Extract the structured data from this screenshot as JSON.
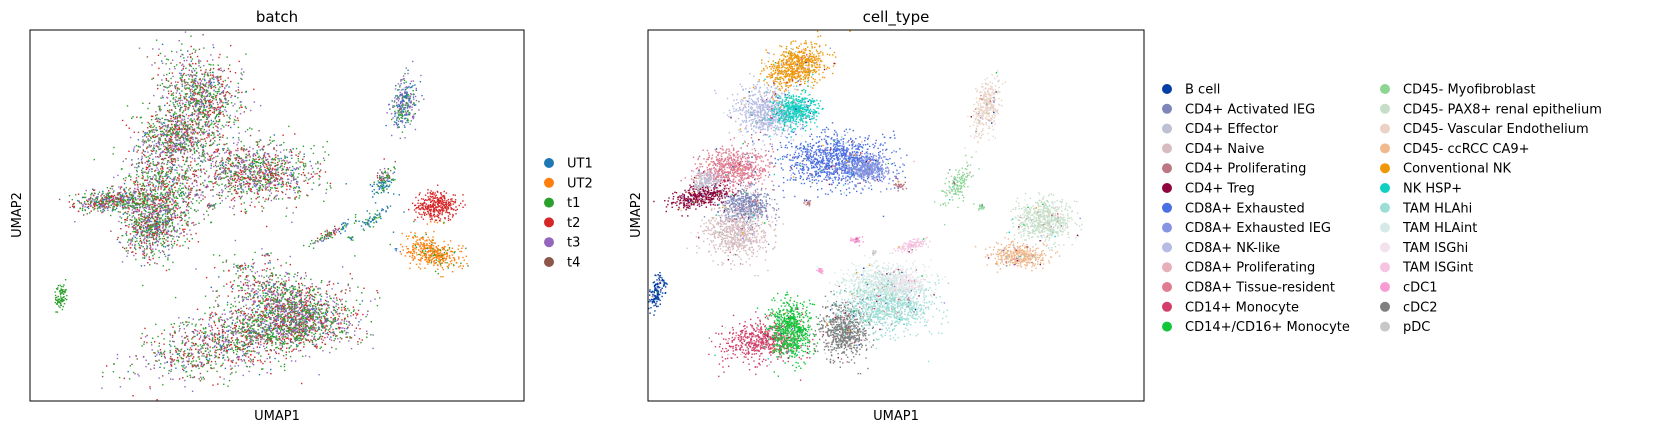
{
  "chart_data": [
    {
      "type": "scatter",
      "title": "batch",
      "xlabel": "UMAP1",
      "ylabel": "UMAP2",
      "legend_position": "right",
      "ticks": "none",
      "series": [
        {
          "name": "UT1",
          "color": "#1f77b4"
        },
        {
          "name": "UT2",
          "color": "#ff7f0e"
        },
        {
          "name": "t1",
          "color": "#2ca02c"
        },
        {
          "name": "t2",
          "color": "#d62728"
        },
        {
          "name": "t3",
          "color": "#9467bd"
        },
        {
          "name": "t4",
          "color": "#8c564b"
        }
      ]
    },
    {
      "type": "scatter",
      "title": "cell_type",
      "xlabel": "UMAP1",
      "ylabel": "UMAP2",
      "legend_position": "right",
      "ticks": "none",
      "series": [
        {
          "name": "B cell",
          "color": "#023fa5"
        },
        {
          "name": "CD4+ Activated IEG",
          "color": "#7d87b9"
        },
        {
          "name": "CD4+ Effector",
          "color": "#bec1d4"
        },
        {
          "name": "CD4+ Naive",
          "color": "#d6bcc0"
        },
        {
          "name": "CD4+ Proliferating",
          "color": "#bb7784"
        },
        {
          "name": "CD4+ Treg",
          "color": "#8e063b"
        },
        {
          "name": "CD8A+ Exhausted",
          "color": "#4a6fe3"
        },
        {
          "name": "CD8A+ Exhausted IEG",
          "color": "#8595e1"
        },
        {
          "name": "CD8A+ NK-like",
          "color": "#b5bbe3"
        },
        {
          "name": "CD8A+ Proliferating",
          "color": "#e6afb9"
        },
        {
          "name": "CD8A+ Tissue-resident",
          "color": "#e07b91"
        },
        {
          "name": "CD14+ Monocyte",
          "color": "#d33f6a"
        },
        {
          "name": "CD14+/CD16+ Monocyte",
          "color": "#11c638"
        },
        {
          "name": "CD45- Myofibroblast",
          "color": "#8dd593"
        },
        {
          "name": "CD45- PAX8+ renal epithelium",
          "color": "#c6dec7"
        },
        {
          "name": "CD45- Vascular Endothelium",
          "color": "#ead3c6"
        },
        {
          "name": "CD45- ccRCC CA9+",
          "color": "#f0b98d"
        },
        {
          "name": "Conventional NK",
          "color": "#ef9708"
        },
        {
          "name": "NK HSP+",
          "color": "#0fcfc0"
        },
        {
          "name": "TAM HLAhi",
          "color": "#9cded6"
        },
        {
          "name": "TAM HLAint",
          "color": "#d5eae7"
        },
        {
          "name": "TAM ISGhi",
          "color": "#f3e1eb"
        },
        {
          "name": "TAM ISGint",
          "color": "#f6c4e1"
        },
        {
          "name": "cDC1",
          "color": "#f79cd4"
        },
        {
          "name": "cDC2",
          "color": "#7f7f7f"
        },
        {
          "name": "pDC",
          "color": "#c7c7c7"
        }
      ]
    }
  ]
}
